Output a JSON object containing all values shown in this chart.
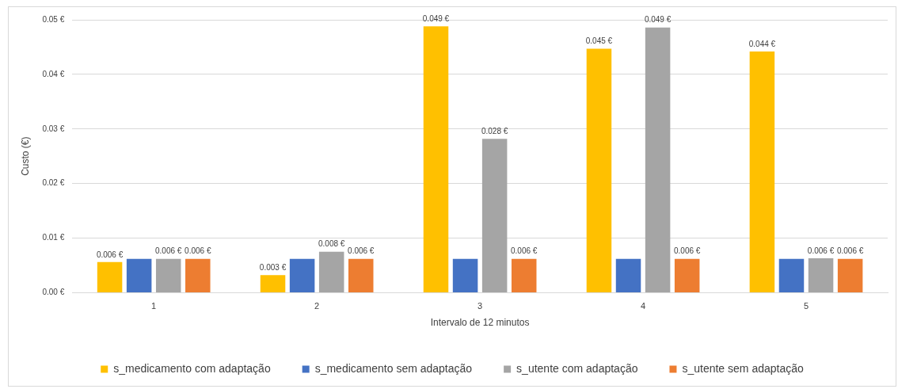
{
  "chart_data": {
    "type": "bar",
    "xlabel": "Intervalo de 12 minutos",
    "ylabel": "Custo (€)",
    "categories": [
      "1",
      "2",
      "3",
      "4",
      "5"
    ],
    "series": [
      {
        "name": "s_medicamento com adaptação",
        "color": "#ffc000",
        "values": [
          0.0056,
          0.0032,
          0.0488,
          0.0447,
          0.0442
        ],
        "value_labels": [
          "0.006 €",
          "0.003 €",
          "0.049 €",
          "0.045 €",
          "0.044 €"
        ]
      },
      {
        "name": "s_medicamento sem adaptação",
        "color": "#4472c4",
        "values": [
          0.0062,
          0.0062,
          0.0062,
          0.0062,
          0.0062
        ]
      },
      {
        "name": "s_utente com adaptação",
        "color": "#a5a5a5",
        "values": [
          0.0062,
          0.0075,
          0.0282,
          0.0486,
          0.0063
        ],
        "value_labels": [
          "0.006 €",
          "0.008 €",
          "0.028 €",
          "0.049 €",
          "0.006 €"
        ]
      },
      {
        "name": "s_utente sem adaptação",
        "color": "#ed7d31",
        "values": [
          0.0062,
          0.0062,
          0.0062,
          0.0062,
          0.0062
        ],
        "value_labels": [
          "0.006 €",
          "0.006 €",
          "0.006 €",
          "0.006 €",
          "0.006 €"
        ]
      }
    ],
    "ylim": [
      0,
      0.05
    ],
    "yticks": [
      {
        "value": 0,
        "label": "0.00 €"
      },
      {
        "value": 0.01,
        "label": "0.01 €"
      },
      {
        "value": 0.02,
        "label": "0.02 €"
      },
      {
        "value": 0.03,
        "label": "0.03 €"
      },
      {
        "value": 0.04,
        "label": "0.04 €"
      },
      {
        "value": 0.05,
        "label": "0.05 €"
      }
    ],
    "grid": "y",
    "legend": "bottom"
  }
}
